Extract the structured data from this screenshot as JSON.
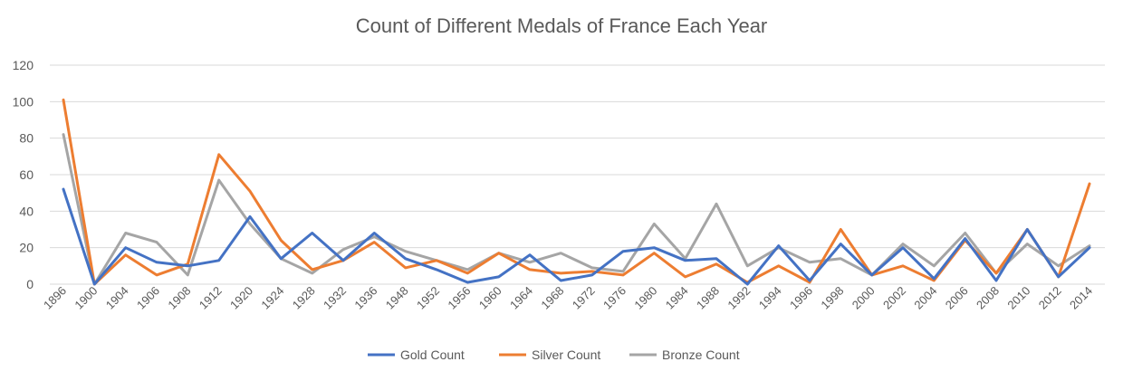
{
  "chart_data": {
    "type": "line",
    "title": "Count of Different Medals of France Each Year",
    "xlabel": "",
    "ylabel": "",
    "ylim": [
      0,
      120
    ],
    "yticks": [
      0,
      20,
      40,
      60,
      80,
      100,
      120
    ],
    "grid": true,
    "legend_position": "bottom",
    "categories": [
      "1896",
      "1900",
      "1904",
      "1906",
      "1908",
      "1912",
      "1920",
      "1924",
      "1928",
      "1932",
      "1936",
      "1948",
      "1952",
      "1956",
      "1960",
      "1964",
      "1968",
      "1972",
      "1976",
      "1980",
      "1984",
      "1988",
      "1992",
      "1994",
      "1996",
      "1998",
      "2000",
      "2002",
      "2004",
      "2006",
      "2008",
      "2010",
      "2012",
      "2014"
    ],
    "series": [
      {
        "name": "Gold Count",
        "color": "#4472C4",
        "values": [
          52,
          0,
          20,
          12,
          10,
          13,
          37,
          14,
          28,
          13,
          28,
          14,
          8,
          1,
          4,
          16,
          2,
          5,
          18,
          20,
          13,
          14,
          0,
          21,
          2,
          22,
          5,
          20,
          3,
          25,
          2,
          30,
          4,
          20
        ]
      },
      {
        "name": "Silver Count",
        "color": "#ED7D31",
        "values": [
          101,
          0,
          16,
          5,
          11,
          71,
          51,
          24,
          8,
          13,
          23,
          9,
          13,
          6,
          17,
          8,
          6,
          7,
          5,
          17,
          4,
          11,
          1,
          10,
          1,
          30,
          5,
          10,
          2,
          24,
          6,
          30,
          4,
          55
        ]
      },
      {
        "name": "Bronze Count",
        "color": "#A5A5A5",
        "values": [
          82,
          0,
          28,
          23,
          5,
          57,
          33,
          14,
          6,
          19,
          26,
          18,
          13,
          8,
          17,
          12,
          17,
          9,
          7,
          33,
          14,
          44,
          10,
          20,
          12,
          14,
          5,
          22,
          10,
          28,
          6,
          22,
          10,
          21
        ]
      }
    ]
  }
}
